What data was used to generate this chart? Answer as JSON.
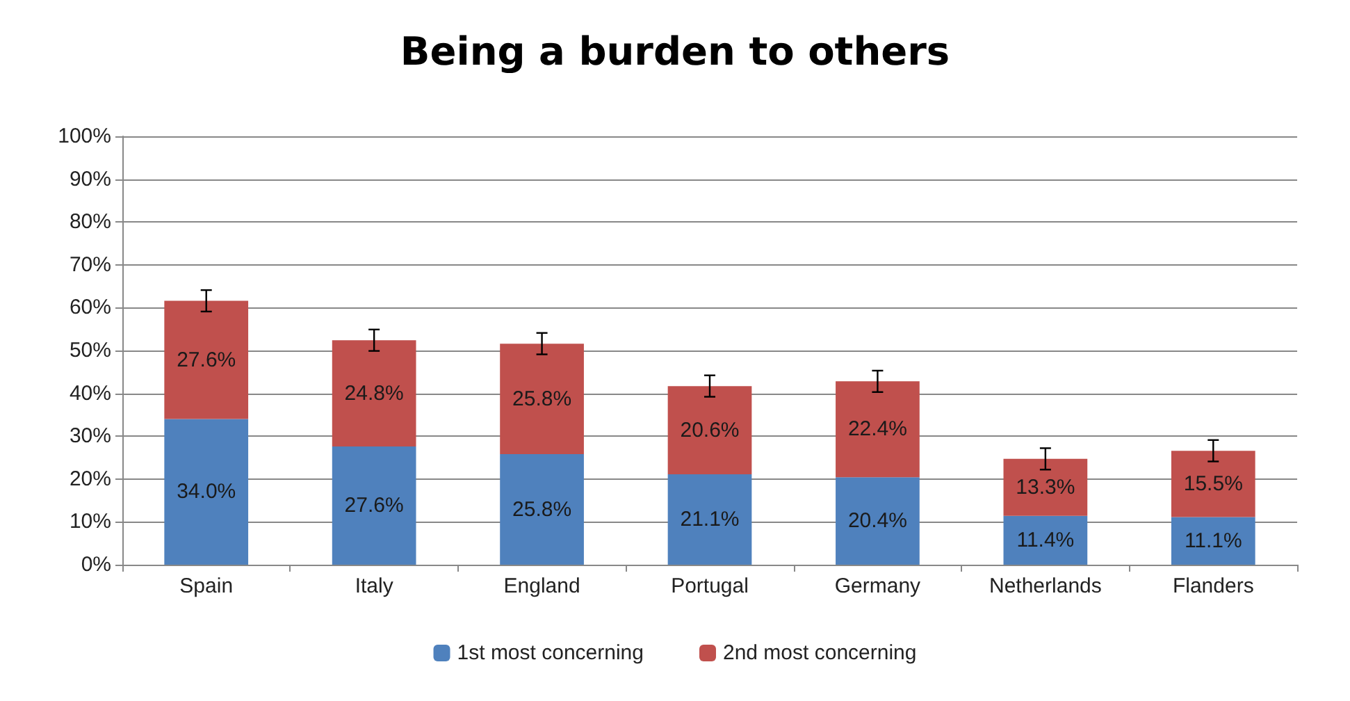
{
  "chart_data": {
    "type": "bar",
    "title": "Being a burden to others",
    "stacked": true,
    "categories": [
      "Spain",
      "Italy",
      "England",
      "Portugal",
      "Germany",
      "Netherlands",
      "Flanders"
    ],
    "series": [
      {
        "name": "1st most concerning",
        "color": "#4f81bd",
        "values": [
          34.0,
          27.6,
          25.8,
          21.1,
          20.4,
          11.4,
          11.1
        ],
        "value_labels": [
          "34.0%",
          "27.6%",
          "25.8%",
          "21.1%",
          "20.4%",
          "11.4%",
          "11.1%"
        ]
      },
      {
        "name": "2nd most concerning",
        "color": "#c0504d",
        "values": [
          27.6,
          24.8,
          25.8,
          20.6,
          22.4,
          13.3,
          15.5
        ],
        "value_labels": [
          "27.6%",
          "24.8%",
          "25.8%",
          "20.6%",
          "22.4%",
          "13.3%",
          "15.5%"
        ],
        "errors": [
          2.5,
          2.5,
          2.5,
          2.5,
          2.5,
          2.5,
          2.5
        ]
      }
    ],
    "ylim": [
      0,
      100
    ],
    "yticks": [
      {
        "value": 0,
        "label": "0%"
      },
      {
        "value": 10,
        "label": "10%"
      },
      {
        "value": 20,
        "label": "20%"
      },
      {
        "value": 30,
        "label": "30%"
      },
      {
        "value": 40,
        "label": "40%"
      },
      {
        "value": 50,
        "label": "50%"
      },
      {
        "value": 60,
        "label": "60%"
      },
      {
        "value": 70,
        "label": "70%"
      },
      {
        "value": 80,
        "label": "80%"
      },
      {
        "value": 90,
        "label": "90%"
      },
      {
        "value": 100,
        "label": "100%"
      }
    ],
    "grid": "y",
    "legend": "bottom"
  }
}
